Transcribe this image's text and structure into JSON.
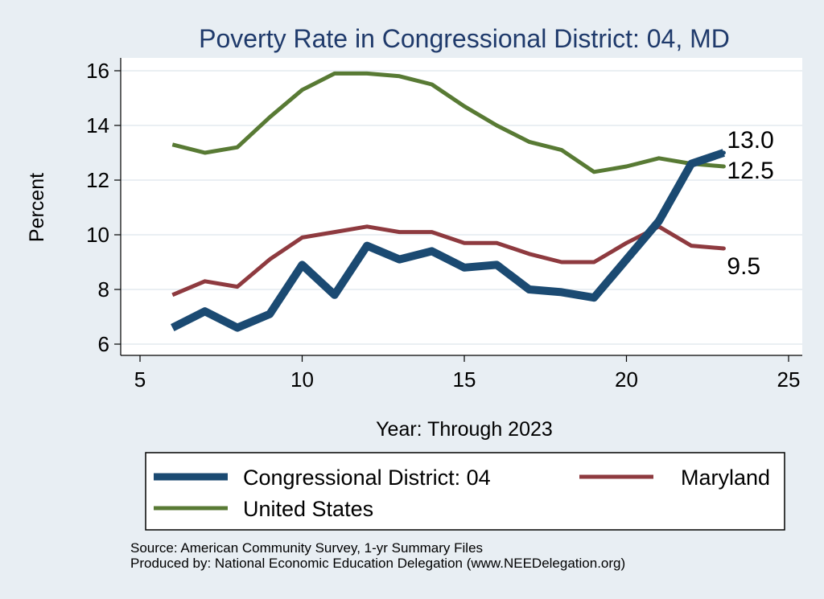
{
  "chart_data": {
    "type": "line",
    "title": "Poverty Rate in Congressional District:  04, MD",
    "xlabel": "Year: Through 2023",
    "ylabel": "Percent",
    "xlim": [
      5,
      25
    ],
    "ylim": [
      6,
      16
    ],
    "xticks": [
      5,
      10,
      15,
      20,
      25
    ],
    "yticks": [
      6,
      8,
      10,
      12,
      14,
      16
    ],
    "grid": true,
    "legend_position": "bottom",
    "x": [
      6,
      7,
      8,
      9,
      10,
      11,
      12,
      13,
      14,
      15,
      16,
      17,
      18,
      19,
      20,
      21,
      22,
      23
    ],
    "series": [
      {
        "name": "Congressional District:  04",
        "color": "#1b4a72",
        "values": [
          6.6,
          7.2,
          6.6,
          7.1,
          8.9,
          7.8,
          9.6,
          9.1,
          9.4,
          8.8,
          8.9,
          8.0,
          7.9,
          7.7,
          9.1,
          10.5,
          12.6,
          13.0
        ],
        "end_label": "13.0"
      },
      {
        "name": "Maryland",
        "color": "#8e3a3f",
        "values": [
          7.8,
          8.3,
          8.1,
          9.1,
          9.9,
          10.1,
          10.3,
          10.1,
          10.1,
          9.7,
          9.7,
          9.3,
          9.0,
          9.0,
          9.7,
          10.3,
          9.6,
          9.5
        ],
        "end_label": "9.5"
      },
      {
        "name": "United States",
        "color": "#587a34",
        "values": [
          13.3,
          13.0,
          13.2,
          14.3,
          15.3,
          15.9,
          15.9,
          15.8,
          15.5,
          14.7,
          14.0,
          13.4,
          13.1,
          12.3,
          12.5,
          12.8,
          12.6,
          12.5
        ],
        "end_label": "12.5"
      }
    ],
    "source_lines": [
      "Source: American Community Survey, 1-yr Summary Files",
      "Produced by: National Economic Education Delegation (www.NEEDelegation.org)"
    ]
  }
}
